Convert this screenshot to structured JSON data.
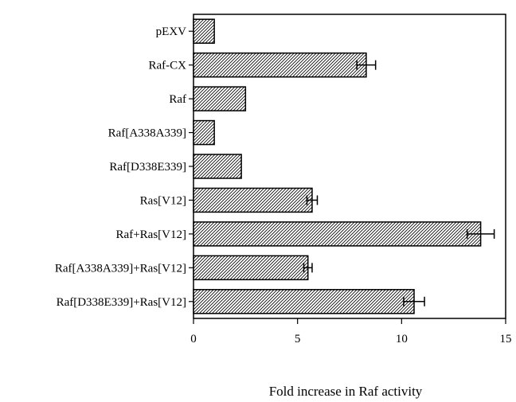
{
  "chart_data": {
    "type": "bar",
    "orientation": "horizontal",
    "categories": [
      "pEXV",
      "Raf-CX",
      "Raf",
      "Raf[A338A339]",
      "Raf[D338E339]",
      "Ras[V12]",
      "Raf+Ras[V12]",
      "Raf[A338A339]+Ras[V12]",
      "Raf[D338E339]+Ras[V12]"
    ],
    "values": [
      1.0,
      8.3,
      2.5,
      1.0,
      2.3,
      5.7,
      13.8,
      5.5,
      10.6
    ],
    "errors": [
      0,
      0.45,
      0,
      0,
      0,
      0.25,
      0.65,
      0.2,
      0.5
    ],
    "xlabel": "Fold increase in Raf activity",
    "ylabel": "",
    "title": "",
    "xlim": [
      0,
      15
    ],
    "xticks": [
      0,
      5,
      10,
      15
    ],
    "grid": false,
    "legend": "none",
    "bar_fill": "hatched",
    "colors": {
      "bar_stroke": "#000000",
      "hatch": "#000000",
      "background": "#ffffff"
    }
  }
}
